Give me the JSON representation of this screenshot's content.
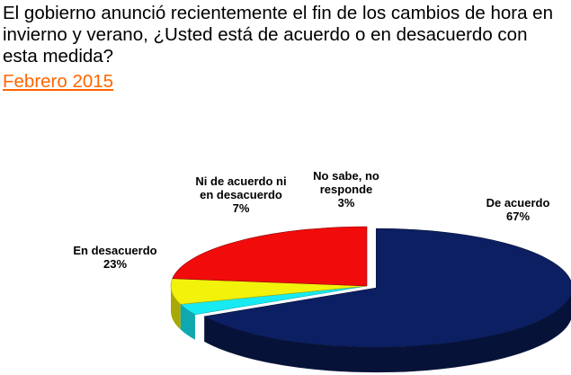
{
  "header": {
    "title": "El gobierno anunció recientemente el fin de los cambios de hora en invierno y verano, ¿Usted está de acuerdo o en desacuerdo con esta medida?",
    "subtitle": "Febrero 2015"
  },
  "chart_data": {
    "type": "pie",
    "title": "El gobierno anunció recientemente el fin de los cambios de hora en invierno y verano, ¿Usted está de acuerdo o en desacuerdo con esta medida?",
    "subtitle": "Febrero 2015",
    "three_d": true,
    "legend": "none",
    "slices": [
      {
        "label_lines": [
          "De acuerdo"
        ],
        "label": "De acuerdo",
        "value": 67,
        "value_label": "67%",
        "color": "#0c1f63",
        "side_color": "#071238"
      },
      {
        "label_lines": [
          "No sabe, no",
          "responde"
        ],
        "label": "No sabe, no responde",
        "value": 3,
        "value_label": "3%",
        "color": "#18eaf2",
        "side_color": "#0fa8ae"
      },
      {
        "label_lines": [
          "Ni de acuerdo ni",
          "en desacuerdo"
        ],
        "label": "Ni de acuerdo ni en desacuerdo",
        "value": 7,
        "value_label": "7%",
        "color": "#f2f20a",
        "side_color": "#a8a806"
      },
      {
        "label_lines": [
          "En desacuerdo"
        ],
        "label": "En desacuerdo",
        "value": 23,
        "value_label": "23%",
        "color": "#f10b0b",
        "side_color": "#8c0505"
      }
    ]
  }
}
